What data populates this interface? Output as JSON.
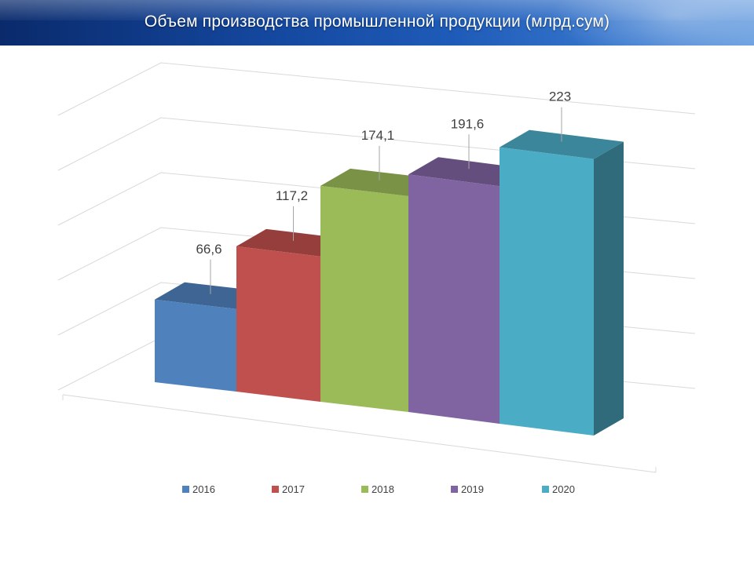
{
  "title": "Объем производства промышленной продукции (млрд.сум)",
  "chart_data": {
    "type": "bar",
    "title": "Объем производства промышленной продукции (млрд.сум)",
    "categories": [
      "2016",
      "2017",
      "2018",
      "2019",
      "2020"
    ],
    "values": [
      66.6,
      117.2,
      174.1,
      191.6,
      223
    ],
    "value_labels": [
      "66,6",
      "117,2",
      "174,1",
      "191,6",
      "223"
    ],
    "colors": [
      "#4F81BD",
      "#C0504D",
      "#9BBB59",
      "#8064A2",
      "#4BACC6"
    ],
    "legend": {
      "position": "bottom",
      "entries": [
        "2016",
        "2017",
        "2018",
        "2019",
        "2020"
      ]
    },
    "grid": true,
    "3d": true
  }
}
